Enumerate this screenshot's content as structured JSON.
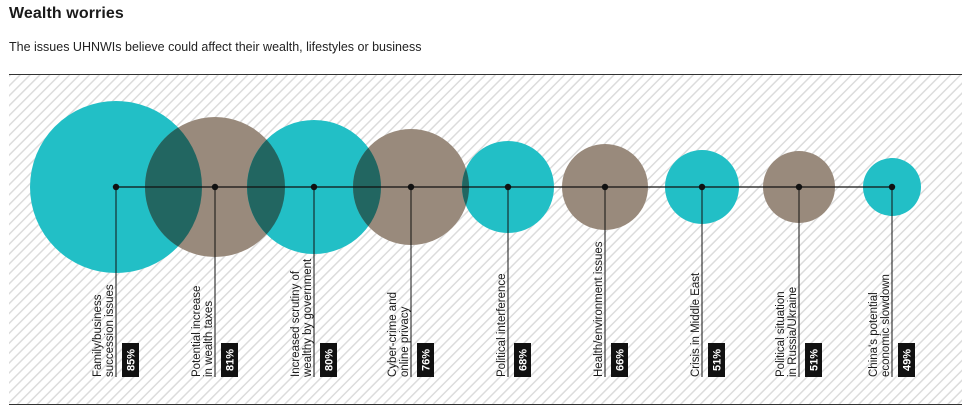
{
  "header": {
    "title": "Wealth worries",
    "subtitle": "The issues UHNWIs believe could affect their wealth, lifestyles or business"
  },
  "colors": {
    "teal": "#22bfc6",
    "taupe": "#998a7c",
    "overlap": "#226661",
    "label_bg": "#111111",
    "hatch": "#dcdcdc"
  },
  "chart_data": {
    "type": "bubble",
    "title": "Wealth worries",
    "unit": "%",
    "items": [
      {
        "label_lines": [
          "Family/business",
          "succession issues"
        ],
        "value": 85,
        "display": "85%",
        "color": "teal"
      },
      {
        "label_lines": [
          "Potential increase",
          "in wealth taxes"
        ],
        "value": 81,
        "display": "81%",
        "color": "taupe"
      },
      {
        "label_lines": [
          "Increased scrutiny of",
          "wealthy by government"
        ],
        "value": 80,
        "display": "80%",
        "color": "teal"
      },
      {
        "label_lines": [
          "Cyber-crime and",
          "online privacy"
        ],
        "value": 76,
        "display": "76%",
        "color": "taupe"
      },
      {
        "label_lines": [
          "Political interference"
        ],
        "value": 68,
        "display": "68%",
        "color": "teal"
      },
      {
        "label_lines": [
          "Health/environment issues"
        ],
        "value": 66,
        "display": "66%",
        "color": "taupe"
      },
      {
        "label_lines": [
          "Crisis in Middle East"
        ],
        "value": 51,
        "display": "51%",
        "color": "teal"
      },
      {
        "label_lines": [
          "Political situation",
          "in Russia/Ukraine"
        ],
        "value": 51,
        "display": "51%",
        "color": "taupe"
      },
      {
        "label_lines": [
          "China's potential",
          "economic slowdown"
        ],
        "value": 49,
        "display": "49%",
        "color": "teal"
      }
    ]
  }
}
